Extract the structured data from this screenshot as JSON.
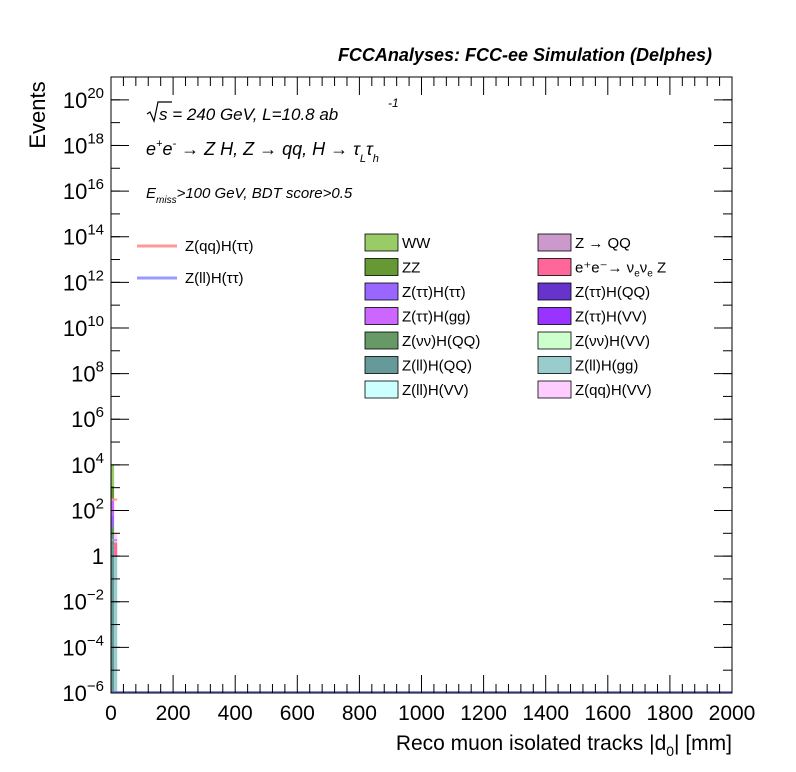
{
  "chart_data": {
    "type": "bar",
    "stacked": true,
    "log_y": true,
    "title": "FCCAnalyses: FCC-ee Simulation (Delphes)",
    "xlabel_main": "Reco muon isolated tracks |d",
    "xlabel_sub": "0",
    "xlabel_end": "| [mm]",
    "ylabel": "Events",
    "xlim": [
      0,
      2000
    ],
    "ylim": [
      1e-06,
      1e+21
    ],
    "x_ticks": [
      0,
      200,
      400,
      600,
      800,
      1000,
      1200,
      1400,
      1600,
      1800,
      2000
    ],
    "y_ticks": [
      {
        "e": -6,
        "label": "10",
        "sup": "−6"
      },
      {
        "e": -4,
        "label": "10",
        "sup": "−4"
      },
      {
        "e": -2,
        "label": "10",
        "sup": "−2"
      },
      {
        "e": 0,
        "label": "1",
        "sup": ""
      },
      {
        "e": 2,
        "label": "10",
        "sup": "2"
      },
      {
        "e": 4,
        "label": "10",
        "sup": "4"
      },
      {
        "e": 6,
        "label": "10",
        "sup": "6"
      },
      {
        "e": 8,
        "label": "10",
        "sup": "8"
      },
      {
        "e": 10,
        "label": "10",
        "sup": "10"
      },
      {
        "e": 12,
        "label": "10",
        "sup": "12"
      },
      {
        "e": 14,
        "label": "10",
        "sup": "14"
      },
      {
        "e": 16,
        "label": "10",
        "sup": "16"
      },
      {
        "e": 18,
        "label": "10",
        "sup": "18"
      },
      {
        "e": 20,
        "label": "10",
        "sup": "20"
      }
    ],
    "grid": false,
    "legend_position": "top",
    "annotations": {
      "sqrt_s": "s = 240 GeV, L=10.8 ab",
      "lumi_exp": "-1",
      "process": "e⁺e⁻ → Z H, Z → qq, H → τ_L τ_h",
      "cuts": "E_miss>100 GeV, BDT score>0.5"
    },
    "signals": [
      {
        "name": "Z(qq)H(ττ)",
        "color": "#ff9999"
      },
      {
        "name": "Z(ll)H(ττ)",
        "color": "#9999ff"
      }
    ],
    "backgrounds": [
      {
        "name": "WW",
        "color": "#99cc66"
      },
      {
        "name": "Z → QQ",
        "color": "#cc99cc"
      },
      {
        "name": "ZZ",
        "color": "#669933"
      },
      {
        "name": "e⁺e⁻→ ν_e ν_e Z",
        "color": "#ff6699"
      },
      {
        "name": "Z(ττ)H(ττ)",
        "color": "#9966ff"
      },
      {
        "name": "Z(ττ)H(QQ)",
        "color": "#6633cc"
      },
      {
        "name": "Z(ττ)H(gg)",
        "color": "#cc66ff"
      },
      {
        "name": "Z(ττ)H(VV)",
        "color": "#9933ff"
      },
      {
        "name": "Z(νν)H(QQ)",
        "color": "#669966"
      },
      {
        "name": "Z(νν)H(VV)",
        "color": "#ccffcc"
      },
      {
        "name": "Z(ll)H(QQ)",
        "color": "#669999"
      },
      {
        "name": "Z(ll)H(gg)",
        "color": "#99cccc"
      },
      {
        "name": "Z(ll)H(VV)",
        "color": "#ccffff"
      },
      {
        "name": "Z(qq)H(VV)",
        "color": "#ffccff"
      }
    ],
    "stack_bins": [
      {
        "x0": 0,
        "x1": 10,
        "layers": [
          {
            "name": "WW",
            "top": 10000
          },
          {
            "name": "ZZ",
            "top": 1200
          },
          {
            "name": "Z(ττ)H(gg)",
            "top": 300
          },
          {
            "name": "Z(ττ)H(ττ)",
            "top": 60
          },
          {
            "name": "Z(νν)H(QQ)",
            "top": 20
          },
          {
            "name": "Z(ll)H(QQ)",
            "top": 3
          }
        ]
      },
      {
        "x0": 10,
        "x1": 20,
        "layers": [
          {
            "name": "Z(qq)H(VV)",
            "top": 10
          },
          {
            "name": "e⁺e⁻→ ν_e ν_e Z",
            "top": 4
          },
          {
            "name": "Z(ll)H(gg)",
            "top": 1
          }
        ]
      }
    ],
    "signal_curves": [
      {
        "name": "Z(qq)H(ττ)",
        "x": [
          0,
          20
        ],
        "y": [
          300,
          300
        ]
      },
      {
        "name": "Z(ll)H(ττ)",
        "x": [
          0,
          20
        ],
        "y": [
          5,
          5
        ]
      }
    ]
  }
}
